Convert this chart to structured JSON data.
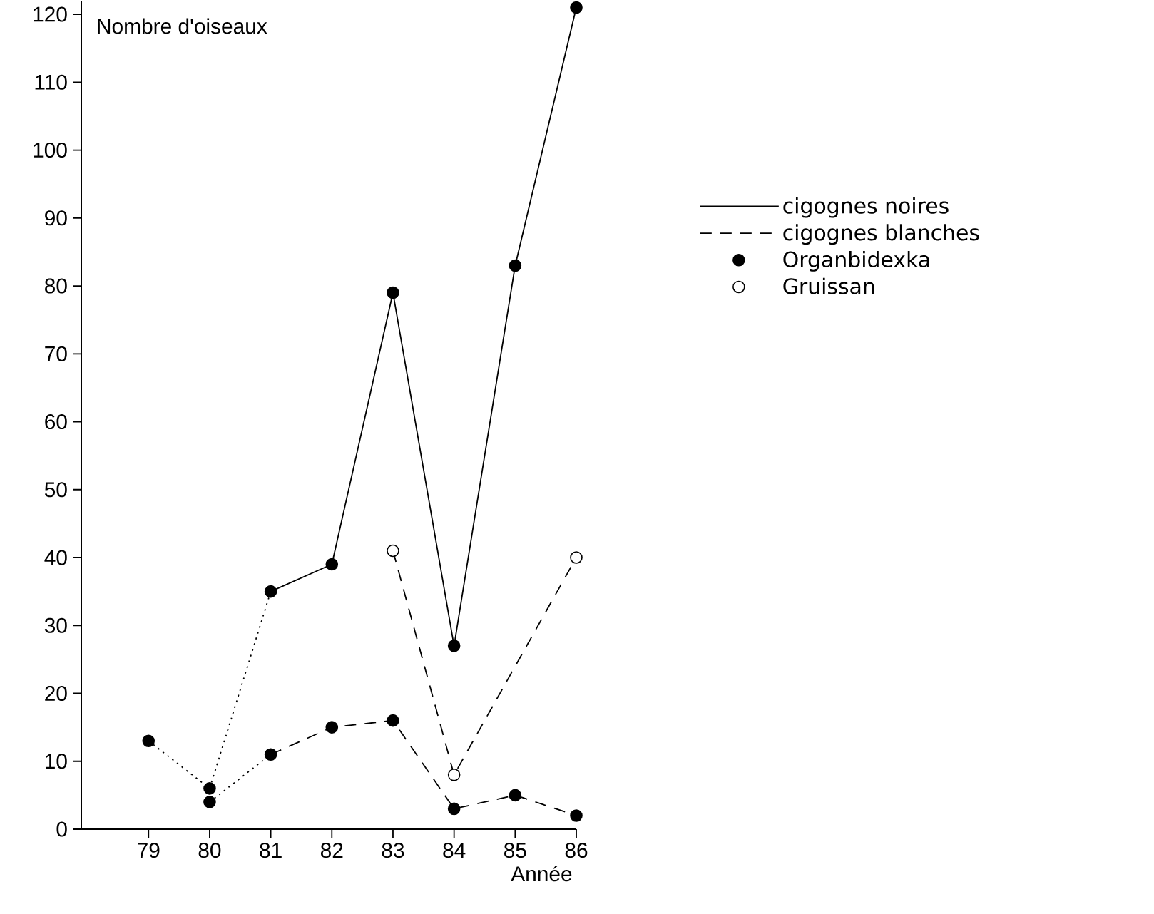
{
  "chart_data": {
    "type": "line",
    "xlabel": "Année",
    "ylabel": "Nombre d'oiseaux",
    "xlim": [
      77.9,
      86
    ],
    "ylim": [
      0,
      122
    ],
    "xticks": [
      79,
      80,
      81,
      82,
      83,
      84,
      85,
      86
    ],
    "yticks": [
      0,
      10,
      20,
      30,
      40,
      50,
      60,
      70,
      80,
      90,
      100,
      110,
      120
    ],
    "legend": "right",
    "series": [
      {
        "name": "cigognes noires",
        "line_style": "solid",
        "marker": "none",
        "color": "#000000",
        "x": [
          81,
          82,
          83,
          84,
          85,
          86
        ],
        "values": [
          35,
          39,
          79,
          27,
          83,
          121
        ]
      },
      {
        "name": "cigognes blanches",
        "line_style": "dashed",
        "marker": "none",
        "color": "#000000",
        "x": [
          81,
          82,
          83,
          84,
          85,
          86
        ],
        "values": [
          11,
          15,
          16,
          3,
          5,
          2
        ]
      },
      {
        "line_style": "dashed",
        "marker": "none",
        "color": "#000000",
        "x": [
          83,
          84,
          86
        ],
        "values": [
          41,
          8,
          40
        ]
      },
      {
        "line_style": "dotted",
        "marker": "none",
        "color": "#000000",
        "x": [
          79,
          80,
          81
        ],
        "values": [
          13,
          6,
          35
        ]
      },
      {
        "line_style": "dotted",
        "marker": "none",
        "color": "#000000",
        "x": [
          80,
          81
        ],
        "values": [
          4,
          11
        ]
      },
      {
        "name": "Organbidexka",
        "type": "scatter",
        "marker": "circle",
        "color": "#000000",
        "x": [
          79,
          80,
          81,
          82,
          83,
          84,
          85,
          86,
          80,
          81,
          82,
          83,
          84,
          85,
          86
        ],
        "values": [
          13,
          6,
          35,
          39,
          79,
          27,
          83,
          121,
          4,
          11,
          15,
          16,
          3,
          5,
          2
        ]
      },
      {
        "name": "Gruissan",
        "type": "scatter",
        "marker": "circle",
        "color": "#ffffff",
        "x": [
          83,
          84,
          86
        ],
        "values": [
          41,
          8,
          40
        ]
      }
    ]
  }
}
